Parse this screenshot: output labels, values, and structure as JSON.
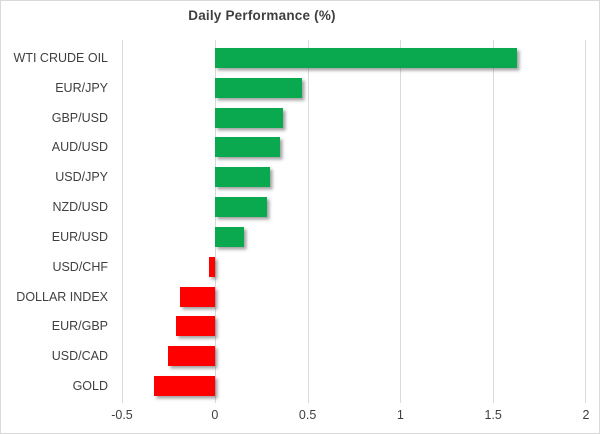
{
  "chart_data": {
    "type": "bar",
    "orientation": "horizontal",
    "title": "Daily Performance (%)",
    "categories": [
      "WTI CRUDE OIL",
      "EUR/JPY",
      "GBP/USD",
      "AUD/USD",
      "USD/JPY",
      "NZD/USD",
      "EUR/USD",
      "USD/CHF",
      "DOLLAR INDEX",
      "EUR/GBP",
      "USD/CAD",
      "GOLD"
    ],
    "values": [
      1.63,
      0.47,
      0.37,
      0.35,
      0.3,
      0.28,
      0.16,
      -0.03,
      -0.19,
      -0.21,
      -0.25,
      -0.33
    ],
    "xlabel": "",
    "ylabel": "",
    "xlim": [
      -0.5,
      2
    ],
    "x_ticks": [
      -0.5,
      0,
      0.5,
      1,
      1.5,
      2
    ],
    "x_tick_labels": [
      "-0.5",
      "0",
      "0.5",
      "1",
      "1.5",
      "2"
    ],
    "grid": "vertical-gridlines-on",
    "legend": "none",
    "positive_color": "#0aa84f",
    "negative_color": "#ff0000",
    "gridline_color": "#d9d9d9",
    "text_color": "#3f3f3f",
    "background_color": "#ffffff"
  }
}
